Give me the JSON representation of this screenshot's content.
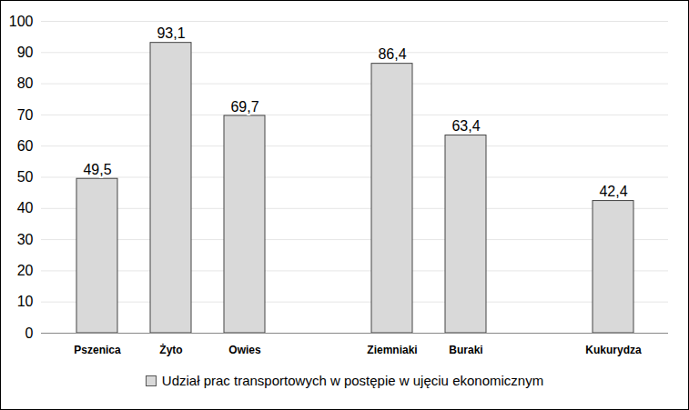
{
  "chart_data": {
    "type": "bar",
    "categories": [
      "Pszenica",
      "Żyto",
      "Owies",
      null,
      "Ziemniaki",
      "Buraki",
      null,
      "Kukurydza"
    ],
    "series": [
      {
        "name": "Udział prac transportowych w postępie w ujęciu ekonomicznym",
        "color": "#d9d9d9",
        "values": [
          49.5,
          93.1,
          69.7,
          null,
          86.4,
          63.4,
          null,
          42.4
        ],
        "value_labels": [
          "49,5",
          "93,1",
          "69,7",
          null,
          "86,4",
          "63,4",
          null,
          "42,4"
        ]
      }
    ],
    "ylim": [
      0,
      100
    ],
    "yticks": [
      0,
      10,
      20,
      30,
      40,
      50,
      60,
      70,
      80,
      90,
      100
    ],
    "grid": true,
    "data_labels": true,
    "legend": "bottom"
  }
}
